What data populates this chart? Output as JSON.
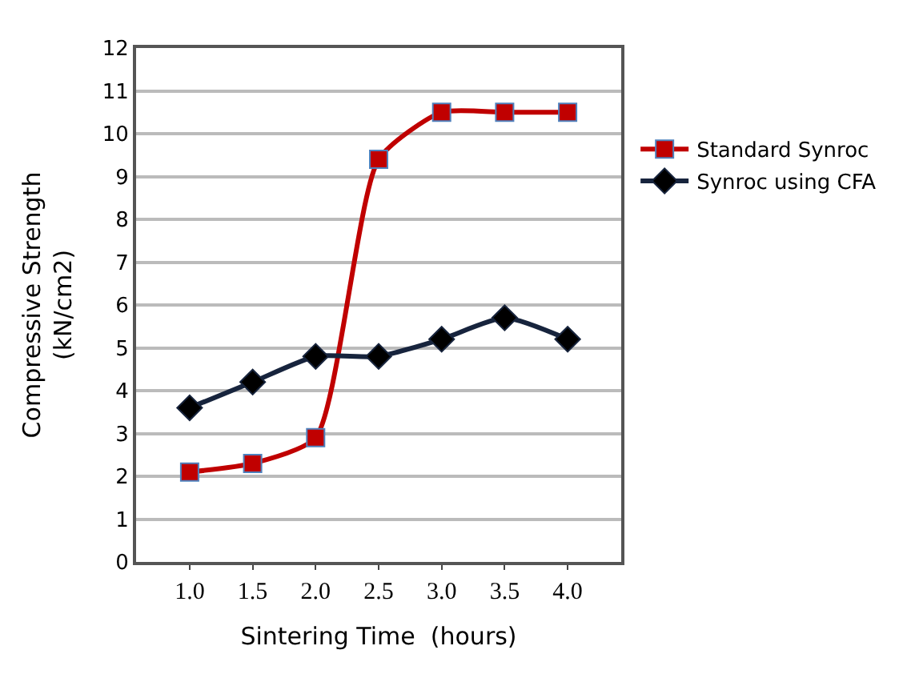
{
  "chart_data": {
    "type": "line",
    "xlabel": "Sintering Time  (hours)",
    "ylabel": "Compressive Strength\n(kN/cm2)",
    "categories": [
      "1.0",
      "1.5",
      "2.0",
      "2.5",
      "3.0",
      "3.5",
      "4.0"
    ],
    "series": [
      {
        "name": "Standard Synroc",
        "color": "#c00000",
        "marker": "square",
        "values": [
          2.1,
          2.3,
          2.9,
          9.4,
          10.5,
          10.5,
          10.5
        ]
      },
      {
        "name": "Synroc using CFA",
        "color": "#17243d",
        "marker": "diamond",
        "values": [
          3.6,
          4.2,
          4.8,
          4.8,
          5.2,
          5.7,
          5.2
        ]
      }
    ],
    "ylim": [
      0,
      12
    ],
    "yticks": [
      0,
      1,
      2,
      3,
      4,
      5,
      6,
      7,
      8,
      9,
      10,
      11,
      12
    ],
    "grid": "y",
    "legend": "right",
    "line_style": "solid"
  }
}
